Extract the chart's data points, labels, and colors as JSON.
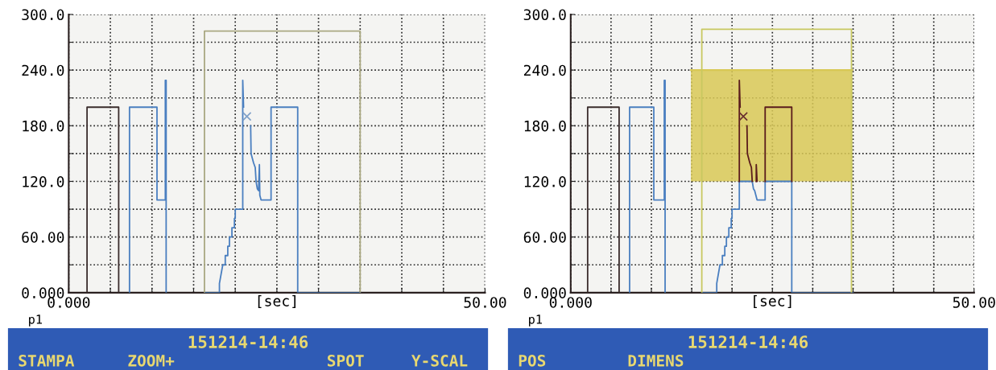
{
  "chart_data": [
    {
      "type": "line",
      "xlabel": "[sec]",
      "xlim": [
        0,
        50
      ],
      "ylim": [
        0,
        300
      ],
      "xticks": [
        {
          "value": 0,
          "label": "0.000"
        },
        {
          "value": 5,
          "label": null
        },
        {
          "value": 10,
          "label": null
        },
        {
          "value": 15,
          "label": null
        },
        {
          "value": 20,
          "label": null
        },
        {
          "value": 25,
          "label": null
        },
        {
          "value": 30,
          "label": null
        },
        {
          "value": 35,
          "label": null
        },
        {
          "value": 40,
          "label": null
        },
        {
          "value": 45,
          "label": null
        },
        {
          "value": 50,
          "label": "50.00"
        }
      ],
      "yticks": [
        {
          "value": 0,
          "label": "0.000"
        },
        {
          "value": 30,
          "label": null
        },
        {
          "value": 60,
          "label": "60.00"
        },
        {
          "value": 90,
          "label": null
        },
        {
          "value": 120,
          "label": "120.0"
        },
        {
          "value": 150,
          "label": null
        },
        {
          "value": 180,
          "label": "180.0"
        },
        {
          "value": 210,
          "label": null
        },
        {
          "value": 240,
          "label": "240.0"
        },
        {
          "value": 270,
          "label": null
        },
        {
          "value": 300,
          "label": "300.0"
        }
      ],
      "grid": true,
      "line_style": "solid",
      "marker": "none",
      "annotations": [
        "p1",
        "151214-14:46",
        "STAMPA",
        "ZOOM+",
        "SPOT",
        "Y-SCAL"
      ],
      "series": [
        {
          "color": "#3a2c2c",
          "x": [
            2.2,
            2.2,
            6.0,
            6.0
          ],
          "values": [
            0,
            200,
            200,
            0
          ]
        },
        {
          "color": "#4a7fc0",
          "x": [
            7.3,
            7.3,
            10.6,
            10.6,
            11.6,
            11.6,
            11.7,
            11.7,
            14.0,
            16.3,
            18.1,
            18.1,
            18.5,
            18.8,
            18.8,
            19.1,
            19.1,
            19.3,
            19.3,
            19.6,
            19.6,
            19.9,
            19.9,
            20.0,
            20.0,
            20.9,
            20.9,
            20.9,
            21.0,
            21.4,
            21.85,
            21.9,
            22.2,
            22.4,
            22.5,
            22.65,
            22.8,
            22.9,
            22.95,
            23.1,
            24.3,
            24.3,
            27.5,
            27.5,
            35.0
          ],
          "values": [
            0,
            200,
            200,
            100,
            100,
            229,
            229,
            0,
            null,
            0,
            0,
            10,
            30,
            30,
            40,
            40,
            50,
            50,
            60,
            60,
            70,
            70,
            80,
            80,
            90,
            90,
            190,
            229,
            200,
            null,
            180,
            150,
            140,
            135,
            120,
            112,
            110,
            138,
            105,
            100,
            100,
            200,
            200,
            0,
            0
          ]
        },
        {
          "color": "#aaa882",
          "x": [
            16.3,
            16.3,
            35.0,
            35.0
          ],
          "values": [
            0,
            282,
            282,
            0
          ]
        },
        {
          "type": "scatter",
          "marker": "cross",
          "color": "#7fa0c8",
          "x": [
            21.4
          ],
          "values": [
            190
          ]
        }
      ]
    },
    {
      "type": "line",
      "xlabel": "[sec]",
      "xlim": [
        0,
        50
      ],
      "ylim": [
        0,
        300
      ],
      "xticks": [
        {
          "value": 0,
          "label": "0.000"
        },
        {
          "value": 5,
          "label": null
        },
        {
          "value": 10,
          "label": null
        },
        {
          "value": 15,
          "label": null
        },
        {
          "value": 20,
          "label": null
        },
        {
          "value": 25,
          "label": null
        },
        {
          "value": 30,
          "label": null
        },
        {
          "value": 35,
          "label": null
        },
        {
          "value": 40,
          "label": null
        },
        {
          "value": 45,
          "label": null
        },
        {
          "value": 50,
          "label": "50.00"
        }
      ],
      "yticks": [
        {
          "value": 0,
          "label": "0.000"
        },
        {
          "value": 30,
          "label": null
        },
        {
          "value": 60,
          "label": "60.00"
        },
        {
          "value": 90,
          "label": null
        },
        {
          "value": 120,
          "label": "120.0"
        },
        {
          "value": 150,
          "label": null
        },
        {
          "value": 180,
          "label": "180.0"
        },
        {
          "value": 210,
          "label": null
        },
        {
          "value": 240,
          "label": "240.0"
        },
        {
          "value": 270,
          "label": null
        },
        {
          "value": 300,
          "label": "300.0"
        }
      ],
      "grid": true,
      "line_style": "solid",
      "marker": "none",
      "annotations": [
        "p1",
        "151214-14:46",
        "POS",
        "DIMENS"
      ],
      "series": [
        {
          "type": "line",
          "color": "#d8c856",
          "x": [
            14.9,
            34.9
          ],
          "values": [
            240,
            240
          ],
          "lower": [
            120,
            120
          ],
          "upper": [
            240,
            240
          ]
        },
        {
          "color": "#3a2c2c",
          "x": [
            2.1,
            2.1,
            6.0,
            6.0
          ],
          "values": [
            0,
            200,
            200,
            0
          ]
        },
        {
          "color": "#4a7fc0",
          "x": [
            7.3,
            7.3,
            10.3,
            10.3,
            11.6,
            11.6,
            11.7,
            11.7,
            14.0,
            16.3,
            18.1,
            18.1,
            18.5,
            18.8,
            18.8,
            19.1,
            19.1,
            19.3,
            19.3,
            19.6,
            19.6,
            19.9,
            19.9,
            20.0,
            20.0,
            20.9,
            20.9,
            22.5,
            22.65,
            22.8,
            22.95,
            23.1,
            24.1,
            24.1,
            27.4,
            27.4,
            35.0
          ],
          "values": [
            0,
            200,
            200,
            100,
            100,
            229,
            229,
            0,
            null,
            0,
            0,
            10,
            30,
            30,
            40,
            40,
            50,
            50,
            60,
            60,
            70,
            70,
            80,
            80,
            90,
            90,
            120,
            120,
            112,
            110,
            105,
            100,
            100,
            120,
            120,
            0,
            0
          ]
        },
        {
          "color": "#5a1c1c",
          "x": [
            20.9,
            20.9,
            20.9,
            21.0,
            21.4,
            21.85,
            21.9,
            22.2,
            22.4,
            22.5,
            22.8,
            23.0,
            23.0,
            23.1,
            23.6,
            24.1,
            24.1,
            27.4,
            27.4
          ],
          "values": [
            120,
            190,
            229,
            200,
            null,
            180,
            150,
            140,
            135,
            120,
            null,
            120,
            138,
            120,
            null,
            120,
            200,
            200,
            120
          ]
        },
        {
          "color": "#c8c860",
          "x": [
            16.25,
            16.25,
            34.8,
            34.8
          ],
          "values": [
            0,
            284,
            284,
            0
          ]
        },
        {
          "type": "scatter",
          "marker": "cross",
          "color": "#6a3030",
          "x": [
            21.4
          ],
          "values": [
            190
          ]
        }
      ]
    }
  ]
}
